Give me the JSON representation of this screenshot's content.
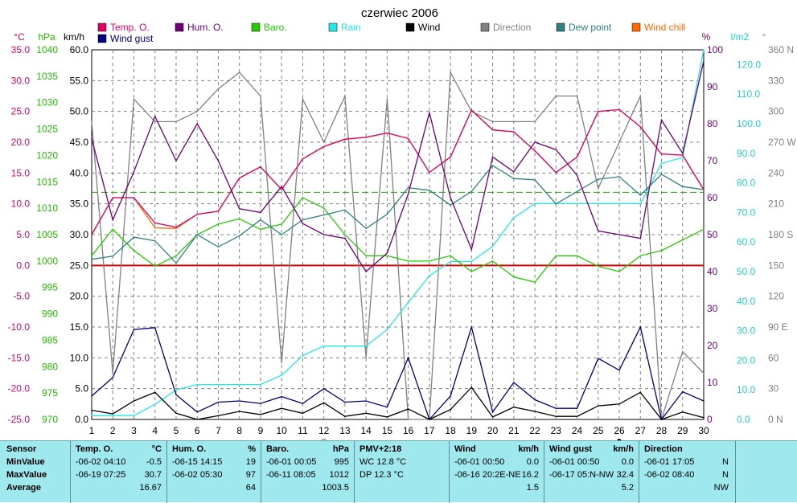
{
  "chart_data": {
    "type": "line",
    "title": "czerwiec 2006",
    "x": [
      1,
      2,
      3,
      4,
      5,
      6,
      7,
      8,
      9,
      10,
      11,
      12,
      13,
      14,
      15,
      16,
      17,
      18,
      19,
      20,
      21,
      22,
      23,
      24,
      25,
      26,
      27,
      28,
      29,
      30
    ],
    "axes": {
      "temp": {
        "unit": "°C",
        "range": [
          -25,
          35
        ],
        "ticks": [
          "35.0",
          "30.0",
          "25.0",
          "20.0",
          "15.0",
          "10.0",
          "5.0",
          "0.0",
          "-5.0",
          "-10.0",
          "-15.0",
          "-20.0",
          "-25.0"
        ]
      },
      "baro": {
        "unit": "hPa",
        "range": [
          970,
          1040
        ],
        "ticks": [
          "1040",
          "1035",
          "1030",
          "1025",
          "1020",
          "1015",
          "1010",
          "1005",
          "1000",
          "995",
          "990",
          "985",
          "980",
          "975",
          "970"
        ]
      },
      "wind": {
        "unit": "km/h",
        "range": [
          0,
          60
        ],
        "ticks": [
          "60.0",
          "55.0",
          "50.0",
          "45.0",
          "40.0",
          "35.0",
          "30.0",
          "25.0",
          "20.0",
          "15.0",
          "10.0",
          "5.0",
          "0.0"
        ]
      },
      "hum": {
        "unit": "%",
        "range": [
          0,
          100
        ],
        "ticks": [
          "100",
          "90",
          "80",
          "70",
          "60",
          "50",
          "40",
          "30",
          "20",
          "10",
          "0"
        ]
      },
      "rain": {
        "unit": "l/m2",
        "range": [
          0,
          125
        ],
        "ticks": [
          "120.0",
          "110.0",
          "100.0",
          "90.0",
          "80.0",
          "70.0",
          "60.0",
          "50.0",
          "40.0",
          "30.0",
          "20.0",
          "10.0",
          "0.0"
        ]
      },
      "dir": {
        "unit": "°",
        "range": [
          0,
          360
        ],
        "ticks": [
          "360 N",
          "330",
          "300",
          "270 W",
          "240",
          "210",
          "180 S",
          "150",
          "120",
          "90 E",
          "60",
          "30",
          "0 N"
        ]
      }
    },
    "series": [
      {
        "key": "temp",
        "name": "Temp. O.",
        "color": "#e0006a",
        "axis": "temp",
        "values": [
          5.0,
          11.0,
          11.0,
          6.9,
          6.2,
          8.3,
          8.8,
          14.2,
          16.0,
          12.3,
          17.3,
          19.3,
          20.5,
          20.8,
          21.5,
          20.6,
          15.1,
          17.6,
          25.2,
          22.0,
          21.7,
          18.6,
          15.1,
          17.6,
          25.0,
          25.3,
          22.5,
          18.1,
          17.9,
          12.3
        ]
      },
      {
        "key": "hum",
        "name": "Hum. O.",
        "color": "#6e007a",
        "axis": "hum",
        "values": [
          76,
          54,
          67,
          82,
          70,
          80,
          70,
          57,
          56,
          63,
          53,
          50,
          49,
          40,
          45,
          61,
          83,
          60,
          46,
          71,
          67,
          75,
          73,
          66,
          51,
          50,
          49,
          81,
          72,
          97
        ]
      },
      {
        "key": "baro",
        "name": "Baro.",
        "color": "#22cc00",
        "axis": "baro",
        "values": [
          1001,
          1006,
          1002,
          999,
          1001,
          1005,
          1007,
          1008,
          1006,
          1007,
          1012,
          1010,
          1005,
          1001,
          1001,
          1000,
          1000,
          1001,
          998,
          1000,
          997,
          996,
          1001,
          1001,
          999,
          998,
          1001,
          1002,
          1004,
          1006
        ]
      },
      {
        "key": "rain",
        "name": "Rain",
        "color": "#22e8e8",
        "axis": "rain",
        "values": [
          1.3,
          1.3,
          1.3,
          5.1,
          10.0,
          11.8,
          11.8,
          11.8,
          11.8,
          15.0,
          21.6,
          24.8,
          24.8,
          24.8,
          30.4,
          39.6,
          48.6,
          53.4,
          53.4,
          58.6,
          68.2,
          73.0,
          73.0,
          73.0,
          73.0,
          73.0,
          73.0,
          86.6,
          88.6,
          125.0
        ]
      },
      {
        "key": "wind",
        "name": "Wind",
        "color": "#000000",
        "axis": "wind",
        "values": [
          1.5,
          0.9,
          3.0,
          4.4,
          1.0,
          0.0,
          0.6,
          1.3,
          0.8,
          1.8,
          1.0,
          2.7,
          0.5,
          1.0,
          0.4,
          1.7,
          0.0,
          1.6,
          5.2,
          0.4,
          2.0,
          1.3,
          0.5,
          0.5,
          2.2,
          2.5,
          4.4,
          0.0,
          1.2,
          0.3
        ]
      },
      {
        "key": "dir",
        "name": "Direction",
        "color": "#808080",
        "axis": "dir",
        "values": [
          290,
          45,
          312,
          290,
          290,
          300,
          322,
          338,
          315,
          55,
          312,
          270,
          315,
          60,
          312,
          0,
          0,
          338,
          300,
          290,
          290,
          290,
          315,
          315,
          225,
          270,
          315,
          0,
          66,
          45
        ]
      },
      {
        "key": "dew",
        "name": "Dew point",
        "color": "#2e8080",
        "axis": "temp",
        "values": [
          1.0,
          1.5,
          4.6,
          4.0,
          0.4,
          5.0,
          3.0,
          4.8,
          7.4,
          5.0,
          7.4,
          8.2,
          9.0,
          6.0,
          8.3,
          12.6,
          12.2,
          9.8,
          12.0,
          16.2,
          14.1,
          13.9,
          10.0,
          12.0,
          14.0,
          14.4,
          11.4,
          14.8,
          12.8,
          12.3
        ]
      },
      {
        "key": "chill",
        "name": "Wind chill",
        "color": "#ff6a00",
        "axis": "temp",
        "values": [
          5.0,
          11.0,
          11.0,
          6.1,
          6.0,
          8.3,
          8.8,
          14.2,
          16.0,
          12.3,
          17.3,
          19.3,
          20.5,
          20.8,
          21.5,
          20.6,
          15.1,
          17.6,
          25.2,
          22.0,
          21.7,
          18.6,
          15.1,
          17.6,
          25.0,
          25.3,
          22.5,
          18.1,
          17.9,
          12.3
        ]
      },
      {
        "key": "gust",
        "name": "Wind gust",
        "color": "#000080",
        "axis": "wind",
        "values": [
          3.8,
          6.8,
          14.6,
          14.9,
          4.0,
          1.2,
          2.8,
          3.0,
          2.6,
          3.7,
          2.6,
          5.0,
          2.8,
          3.0,
          2.0,
          10.0,
          0.0,
          3.8,
          15.0,
          1.2,
          6.0,
          3.2,
          1.8,
          1.8,
          9.9,
          8.0,
          15.0,
          0.0,
          4.5,
          3.0
        ]
      }
    ],
    "reference_lines": [
      {
        "color": "#dd0000",
        "axis": "temp",
        "value": 0.0,
        "style": "solid"
      },
      {
        "color": "#22aa00",
        "axis": "baro",
        "value": 1013,
        "style": "dashed"
      }
    ],
    "moon_phases": [
      {
        "day": 12,
        "symbol": "○"
      },
      {
        "day": 26,
        "symbol": "●"
      }
    ],
    "grid": true,
    "legend": "top"
  },
  "stats": {
    "sensor": {
      "title": "Sensor",
      "rows": [
        "MinValue",
        "MaxValue",
        "Average"
      ]
    },
    "temp": {
      "title": "Temp. O.",
      "unit": "°C",
      "min_date": "-06-02 04:10",
      "min_val": "-0.5",
      "max_date": "-06-19 07:25",
      "max_val": "30.7",
      "avg": "16.67"
    },
    "hum": {
      "title": "Hum. O.",
      "unit": "%",
      "min_date": "-06-15 14:15",
      "min_val": "19",
      "max_date": "-06-02 05:30",
      "max_val": "97",
      "avg": "64"
    },
    "baro": {
      "title": "Baro.",
      "unit": "hPa",
      "min_date": "-06-01 00:05",
      "min_val": "995",
      "max_date": "-06-11 08:05",
      "max_val": "1012",
      "avg": "1003.5"
    },
    "pmv": {
      "title": "PMV+2:18",
      "wc": "WC 12.8 °C",
      "dp": "DP 12.3 °C"
    },
    "wind": {
      "title": "Wind",
      "unit": "km/h",
      "min_date": "-06-01 00:50",
      "min_val": "0.0",
      "max_date": "-06-16 20:2E-NE",
      "max_val": "16.2",
      "avg": "1.5"
    },
    "gust": {
      "title": "Wind gust",
      "unit": "km/h",
      "min_date": "-06-01 00:50",
      "min_val": "0.0",
      "max_date": "-06-17 05:N-NW",
      "max_val": "32.4",
      "avg": "5.2"
    },
    "dir": {
      "title": "Direction",
      "min_date": "-06-01 17:05",
      "min_val": "N",
      "max_date": "-06-02 08:40",
      "max_val": "N",
      "avg": "NW"
    }
  }
}
